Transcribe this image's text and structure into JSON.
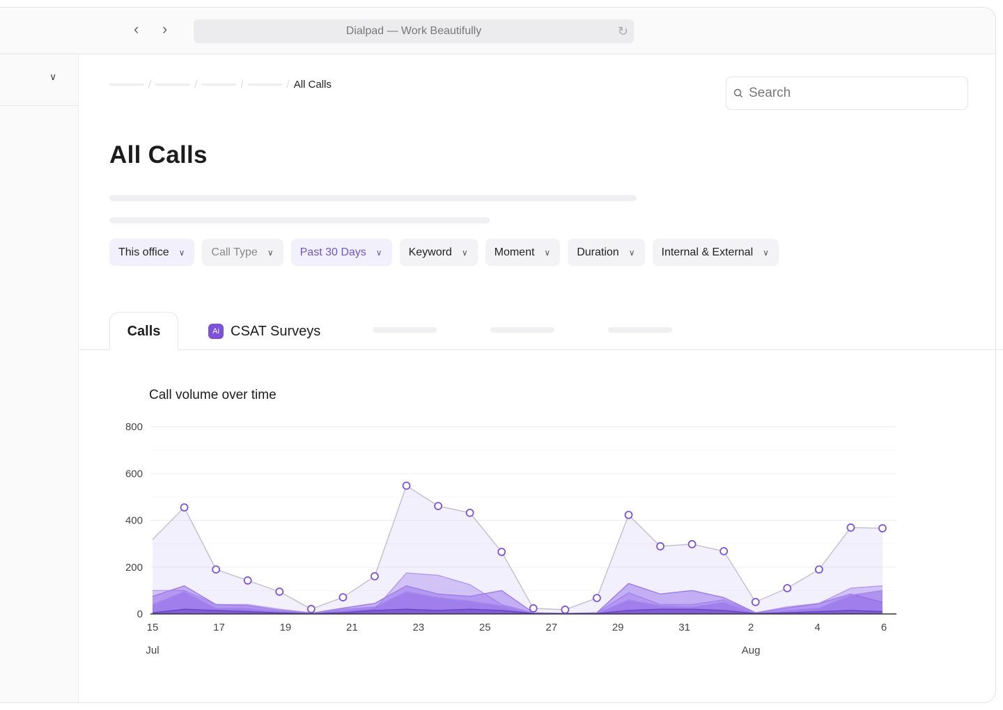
{
  "browser": {
    "title": "Dialpad — Work Beautifully",
    "back_icon": "chevron-left",
    "forward_icon": "chevron-right",
    "reload_icon": "reload"
  },
  "breadcrumb": {
    "current": "All Calls"
  },
  "search": {
    "placeholder": "Search"
  },
  "page_title": "All Calls",
  "filters": [
    {
      "label": "This office",
      "style": "selected"
    },
    {
      "label": "Call Type",
      "style": "disabled"
    },
    {
      "label": "Past 30 Days",
      "style": "active"
    },
    {
      "label": "Keyword",
      "style": "default"
    },
    {
      "label": "Moment",
      "style": "default"
    },
    {
      "label": "Duration",
      "style": "default"
    },
    {
      "label": "Internal & External",
      "style": "default"
    }
  ],
  "tabs": [
    {
      "label": "Calls",
      "active": true
    },
    {
      "label": "CSAT Surveys",
      "icon": "ai-badge"
    }
  ],
  "colors": {
    "accent": "#7c52d9",
    "line": "#bdbdc4"
  },
  "chart_data": {
    "type": "area",
    "title": "Call volume over time",
    "ylim": [
      0,
      800
    ],
    "yticks": [
      0,
      200,
      400,
      600,
      800
    ],
    "xticks": [
      {
        "day": 0,
        "label": "15"
      },
      {
        "day": 2,
        "label": "17"
      },
      {
        "day": 4,
        "label": "19"
      },
      {
        "day": 6,
        "label": "21"
      },
      {
        "day": 8,
        "label": "23"
      },
      {
        "day": 10,
        "label": "25"
      },
      {
        "day": 12,
        "label": "27"
      },
      {
        "day": 14,
        "label": "29"
      },
      {
        "day": 16,
        "label": "31"
      },
      {
        "day": 18,
        "label": "2"
      },
      {
        "day": 20,
        "label": "4"
      },
      {
        "day": 22,
        "label": "6"
      }
    ],
    "month_labels": [
      {
        "day": 0,
        "label": "Jul"
      },
      {
        "day": 18,
        "label": "Aug"
      }
    ],
    "grid": true,
    "total": [
      318,
      455,
      190,
      143,
      95,
      21,
      71,
      161,
      548,
      461,
      432,
      265,
      24,
      18,
      68,
      423,
      289,
      298,
      268,
      51,
      110,
      190,
      369,
      366
    ],
    "series": [
      {
        "values": [
          100,
          100,
          40,
          40,
          20,
          5,
          10,
          20,
          175,
          165,
          125,
          40,
          5,
          2,
          5,
          90,
          40,
          40,
          60,
          5,
          30,
          45,
          110,
          120
        ]
      },
      {
        "values": [
          75,
          120,
          40,
          35,
          15,
          3,
          25,
          45,
          120,
          85,
          75,
          100,
          5,
          2,
          5,
          130,
          85,
          100,
          70,
          5,
          25,
          45,
          85,
          50
        ]
      },
      {
        "values": [
          40,
          95,
          25,
          25,
          10,
          2,
          20,
          30,
          95,
          70,
          55,
          35,
          5,
          1,
          3,
          60,
          35,
          30,
          50,
          3,
          15,
          25,
          80,
          100
        ]
      },
      {
        "values": [
          5,
          20,
          15,
          10,
          5,
          1,
          5,
          15,
          20,
          15,
          20,
          15,
          2,
          1,
          2,
          15,
          20,
          20,
          15,
          2,
          5,
          10,
          15,
          10
        ]
      }
    ]
  }
}
